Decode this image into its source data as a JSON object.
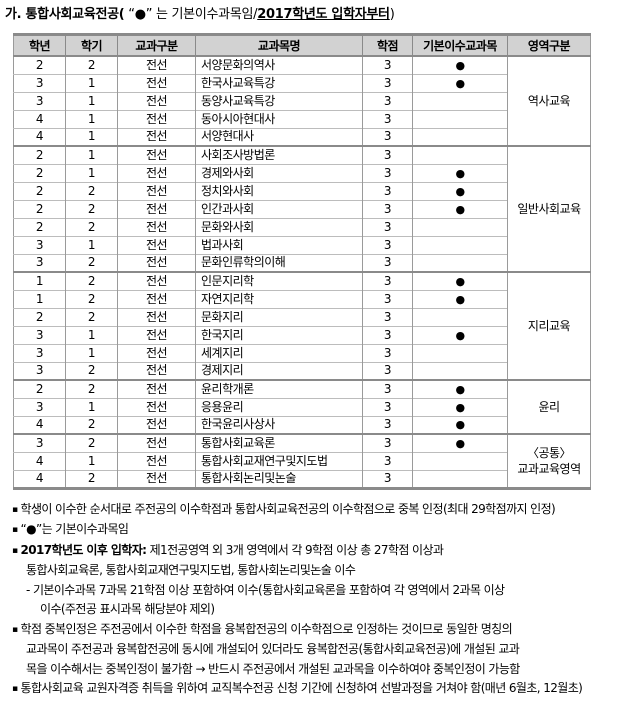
{
  "title": {
    "segments": [
      {
        "text": "가. 통합사회교육전공(",
        "bold": true
      },
      {
        "text": " “●” 는 기본이수과목임/",
        "bold": false
      },
      {
        "text": "2017학년도 입학자부터",
        "bold": true,
        "underline": true
      },
      {
        "text": ")",
        "bold": false
      }
    ]
  },
  "table": {
    "headers": [
      "학년",
      "학기",
      "교과구분",
      "교과목명",
      "학점",
      "기본이수교과목",
      "영역구분"
    ],
    "basic_marker": "●",
    "groups": [
      {
        "region": "역사교육",
        "rows": [
          {
            "year": "2",
            "semester": "2",
            "category": "전선",
            "course": "서양문화의역사",
            "credits": "3",
            "basic": true
          },
          {
            "year": "3",
            "semester": "1",
            "category": "전선",
            "course": "한국사교육특강",
            "credits": "3",
            "basic": true
          },
          {
            "year": "3",
            "semester": "1",
            "category": "전선",
            "course": "동양사교육특강",
            "credits": "3",
            "basic": false
          },
          {
            "year": "4",
            "semester": "1",
            "category": "전선",
            "course": "동아시아현대사",
            "credits": "3",
            "basic": false
          },
          {
            "year": "4",
            "semester": "1",
            "category": "전선",
            "course": "서양현대사",
            "credits": "3",
            "basic": false
          }
        ]
      },
      {
        "region": "일반사회교육",
        "rows": [
          {
            "year": "2",
            "semester": "1",
            "category": "전선",
            "course": "사회조사방법론",
            "credits": "3",
            "basic": false
          },
          {
            "year": "2",
            "semester": "1",
            "category": "전선",
            "course": "경제와사회",
            "credits": "3",
            "basic": true
          },
          {
            "year": "2",
            "semester": "2",
            "category": "전선",
            "course": "정치와사회",
            "credits": "3",
            "basic": true
          },
          {
            "year": "2",
            "semester": "2",
            "category": "전선",
            "course": "인간과사회",
            "credits": "3",
            "basic": true
          },
          {
            "year": "2",
            "semester": "2",
            "category": "전선",
            "course": "문화와사회",
            "credits": "3",
            "basic": false
          },
          {
            "year": "3",
            "semester": "1",
            "category": "전선",
            "course": "법과사회",
            "credits": "3",
            "basic": false
          },
          {
            "year": "3",
            "semester": "2",
            "category": "전선",
            "course": "문화인류학의이해",
            "credits": "3",
            "basic": false
          }
        ]
      },
      {
        "region": "지리교육",
        "rows": [
          {
            "year": "1",
            "semester": "2",
            "category": "전선",
            "course": "인문지리학",
            "credits": "3",
            "basic": true
          },
          {
            "year": "1",
            "semester": "2",
            "category": "전선",
            "course": "자연지리학",
            "credits": "3",
            "basic": true
          },
          {
            "year": "2",
            "semester": "2",
            "category": "전선",
            "course": "문화지리",
            "credits": "3",
            "basic": false
          },
          {
            "year": "3",
            "semester": "1",
            "category": "전선",
            "course": "한국지리",
            "credits": "3",
            "basic": true
          },
          {
            "year": "3",
            "semester": "1",
            "category": "전선",
            "course": "세계지리",
            "credits": "3",
            "basic": false
          },
          {
            "year": "3",
            "semester": "2",
            "category": "전선",
            "course": "경제지리",
            "credits": "3",
            "basic": false
          }
        ]
      },
      {
        "region": "윤리",
        "rows": [
          {
            "year": "2",
            "semester": "2",
            "category": "전선",
            "course": "윤리학개론",
            "credits": "3",
            "basic": true
          },
          {
            "year": "3",
            "semester": "1",
            "category": "전선",
            "course": "응용윤리",
            "credits": "3",
            "basic": true
          },
          {
            "year": "4",
            "semester": "2",
            "category": "전선",
            "course": "한국윤리사상사",
            "credits": "3",
            "basic": true
          }
        ]
      },
      {
        "region": "〈공통〉\n교과교육영역",
        "rows": [
          {
            "year": "3",
            "semester": "2",
            "category": "전선",
            "course": "통합사회교육론",
            "credits": "3",
            "basic": true
          },
          {
            "year": "4",
            "semester": "1",
            "category": "전선",
            "course": "통합사회교재연구및지도법",
            "credits": "3",
            "basic": false
          },
          {
            "year": "4",
            "semester": "2",
            "category": "전선",
            "course": "통합사회논리및논술",
            "credits": "3",
            "basic": false
          }
        ]
      }
    ]
  },
  "footnotes": [
    {
      "bullet": true,
      "indent": 0,
      "segments": [
        {
          "text": "학생이 이수한 순서대로 주전공의 이수학점과 통합사회교육전공의 이수학점으로 중복 인정(최대 29학점까지 인정)"
        }
      ]
    },
    {
      "bullet": true,
      "indent": 0,
      "segments": [
        {
          "text": "“●”는 기본이수과목임"
        }
      ]
    },
    {
      "bullet": true,
      "indent": 0,
      "segments": [
        {
          "text": "2017학년도 이후 입학자:",
          "bold": true
        },
        {
          "text": " 제1전공영역 외 3개 영역에서 각 9학점 이상 총 27학점 이상과"
        }
      ]
    },
    {
      "bullet": false,
      "indent": 1,
      "segments": [
        {
          "text": "통합사회교육론, 통합사회교재연구및지도법, 통합사회논리및논술 이수"
        }
      ]
    },
    {
      "bullet": false,
      "indent": 1,
      "segments": [
        {
          "text": "- 기본이수과목 7과목 21학점 이상 포함하여 이수(통합사회교육론을 포함하여 각 영역에서 2과목 이상"
        }
      ]
    },
    {
      "bullet": false,
      "indent": 2,
      "segments": [
        {
          "text": "이수(주전공 표시과목 해당분야 제외)"
        }
      ]
    },
    {
      "bullet": true,
      "indent": 0,
      "segments": [
        {
          "text": "학점 중복인정은 주전공에서 이수한 학점을 융복합전공의 이수학점으로 인정하는 것이므로 동일한 명칭의"
        }
      ]
    },
    {
      "bullet": false,
      "indent": 1,
      "segments": [
        {
          "text": "교과목이 주전공과 융복합전공에 동시에 개설되어 있더라도 융복합전공(통합사회교육전공)에 개설된 교과"
        }
      ]
    },
    {
      "bullet": false,
      "indent": 1,
      "segments": [
        {
          "text": "목을 이수해서는 중복인정이 불가함 → 반드시 주전공에서 개설된 교과목을 이수하여야 중복인정이 가능함"
        }
      ]
    },
    {
      "bullet": true,
      "indent": 0,
      "segments": [
        {
          "text": "통합사회교육 교원자격증 취득을 위하여 교직복수전공 신청 기간에 신청하여 선발과정을 거쳐야 함(매년 6월초, 12월초)"
        }
      ]
    }
  ]
}
